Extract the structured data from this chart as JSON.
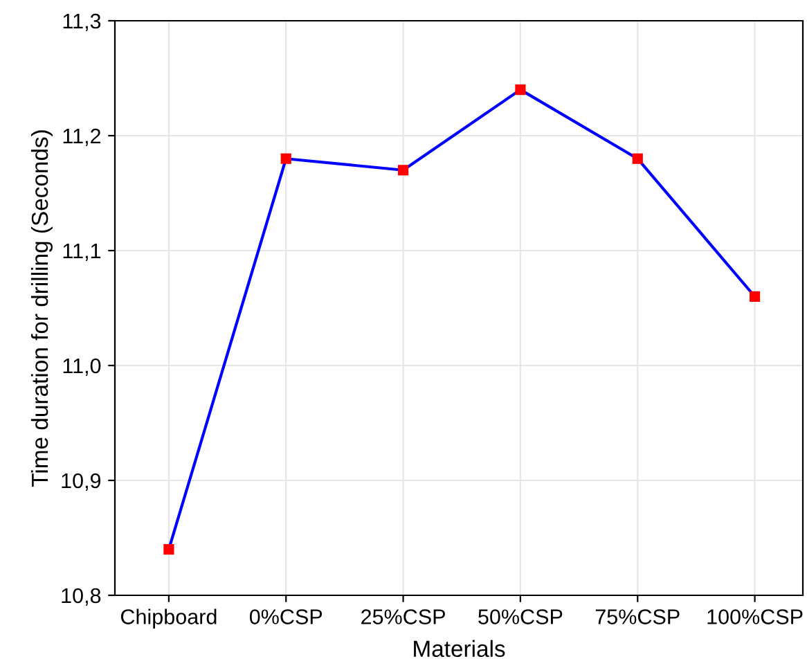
{
  "chart_data": {
    "type": "line",
    "xlabel": "Materials",
    "ylabel": "Time duration for drilling (Seconds)",
    "categories": [
      "Chipboard",
      "0%CSP",
      "25%CSP",
      "50%CSP",
      "75%CSP",
      "100%CSP"
    ],
    "series": [
      {
        "color": "#0000ff",
        "colors": [
          "#ff0000",
          "#ff0000",
          "#ff0000",
          "#ff0000",
          "#ff0000",
          "#ff0000"
        ],
        "values": [
          10.84,
          11.18,
          11.17,
          11.24,
          11.18,
          11.06
        ]
      }
    ],
    "ylim": [
      10.8,
      11.3
    ],
    "yticks": [
      {
        "value": 10.8,
        "label": "10,8"
      },
      {
        "value": 10.9,
        "label": "10,9"
      },
      {
        "value": 11.0,
        "label": "11,0"
      },
      {
        "value": 11.1,
        "label": "11,1"
      },
      {
        "value": 11.2,
        "label": "11,2"
      },
      {
        "value": 11.3,
        "label": "11,3"
      }
    ],
    "grid": true,
    "marker": "square",
    "line_style": "solid"
  }
}
